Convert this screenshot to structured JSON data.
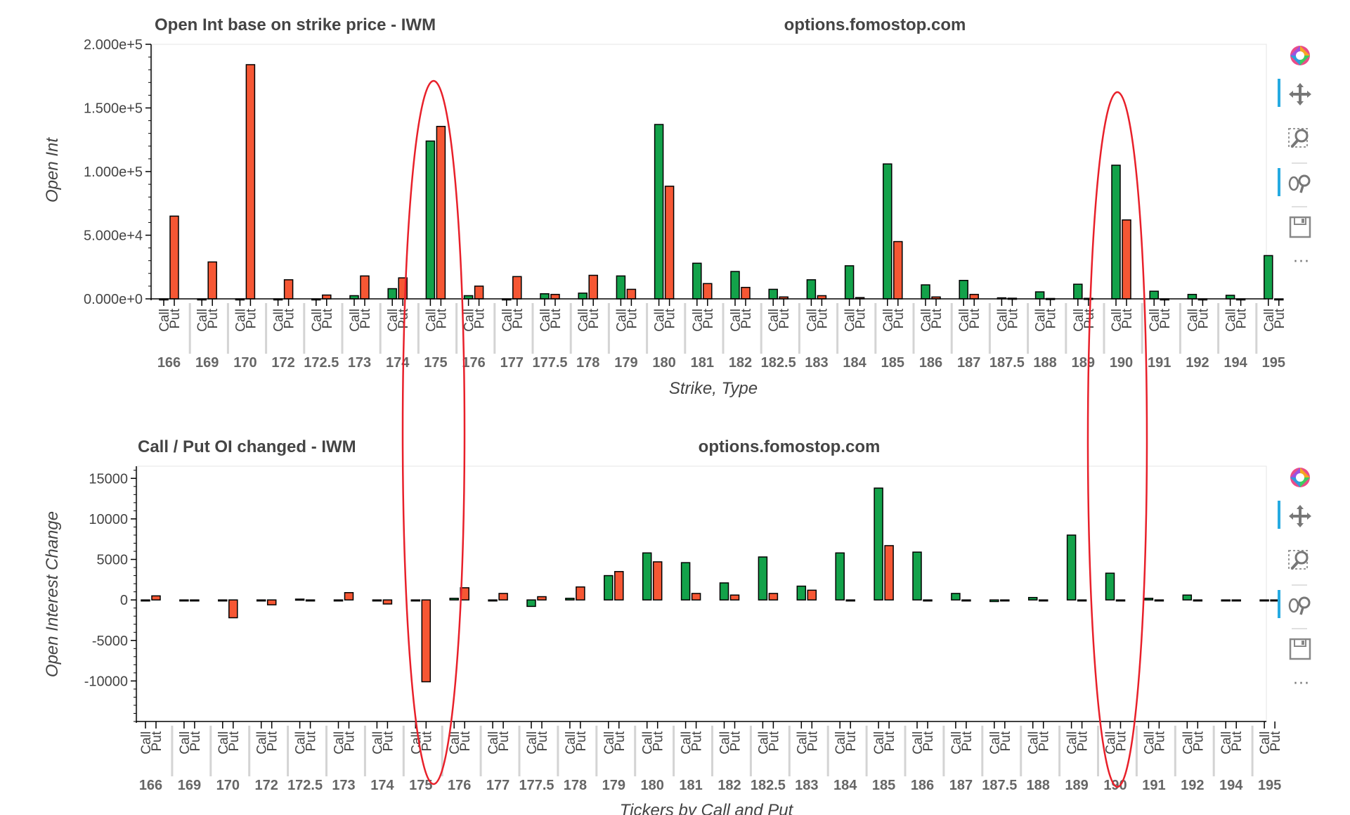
{
  "chart_data": [
    {
      "type": "bar",
      "title": "Open Int base on strike price - IWM",
      "watermark": "options.fomostop.com",
      "xlabel": "Strike, Type",
      "ylabel": "Open Int",
      "ylim": [
        0,
        200000
      ],
      "yticks": [
        0,
        50000,
        100000,
        150000,
        200000
      ],
      "ytick_labels": [
        "0.000e+0",
        "5.000e+4",
        "1.000e+5",
        "1.500e+5",
        "2.000e+5"
      ],
      "types": [
        "Call",
        "Put"
      ],
      "categories": [
        "166",
        "169",
        "170",
        "172",
        "172.5",
        "173",
        "174",
        "175",
        "176",
        "177",
        "177.5",
        "178",
        "179",
        "180",
        "181",
        "182",
        "182.5",
        "183",
        "184",
        "185",
        "186",
        "187",
        "187.5",
        "188",
        "189",
        "190",
        "191",
        "192",
        "194",
        "195"
      ],
      "series": [
        {
          "name": "Call",
          "color": "#13a24a",
          "values": [
            0,
            0,
            0,
            0,
            0,
            2500,
            8000,
            124000,
            2500,
            0,
            4000,
            4500,
            18000,
            137000,
            28000,
            21500,
            7500,
            15000,
            26000,
            106000,
            11000,
            14500,
            800,
            5500,
            11500,
            105000,
            6000,
            3500,
            2800,
            34000
          ]
        },
        {
          "name": "Put",
          "color": "#f65734",
          "values": [
            65000,
            29000,
            184000,
            15000,
            3000,
            18000,
            16500,
            135500,
            10000,
            17500,
            3500,
            18500,
            7500,
            88500,
            12000,
            9000,
            1500,
            2500,
            1000,
            45000,
            1500,
            3500,
            500,
            300,
            400,
            62000,
            0,
            0,
            0,
            0
          ]
        }
      ]
    },
    {
      "type": "bar",
      "title": "Call / Put OI changed - IWM",
      "watermark": "options.fomostop.com",
      "xlabel": "Tickers by Call and Put",
      "ylabel": "Open Interest Change",
      "ylim": [
        -15000,
        16500
      ],
      "yticks": [
        -10000,
        -5000,
        0,
        5000,
        10000,
        15000
      ],
      "ytick_labels": [
        "-10000",
        "-5000",
        "0",
        "5000",
        "10000",
        "15000"
      ],
      "types": [
        "Call",
        "Put"
      ],
      "categories": [
        "166",
        "169",
        "170",
        "172",
        "172.5",
        "173",
        "174",
        "175",
        "176",
        "177",
        "177.5",
        "178",
        "179",
        "180",
        "181",
        "182",
        "182.5",
        "183",
        "184",
        "185",
        "186",
        "187",
        "187.5",
        "188",
        "189",
        "190",
        "191",
        "192",
        "194",
        "195"
      ],
      "series": [
        {
          "name": "Call",
          "color": "#13a24a",
          "values": [
            0,
            0,
            0,
            0,
            100,
            0,
            0,
            0,
            200,
            0,
            -800,
            200,
            3000,
            5800,
            4600,
            2100,
            5300,
            1700,
            5800,
            13800,
            5900,
            800,
            -200,
            300,
            8000,
            3300,
            200,
            600,
            0,
            0
          ]
        },
        {
          "name": "Put",
          "color": "#f65734",
          "values": [
            500,
            0,
            -2200,
            -600,
            0,
            900,
            -500,
            -10100,
            1500,
            800,
            400,
            1600,
            3500,
            4700,
            800,
            600,
            800,
            1200,
            0,
            6700,
            0,
            0,
            0,
            0,
            0,
            0,
            0,
            0,
            0,
            0
          ]
        }
      ]
    }
  ],
  "toolbar": {
    "icons": [
      "bokeh-logo-icon",
      "pan-icon",
      "box-zoom-icon",
      "wheel-zoom-icon",
      "save-icon",
      "more-icon"
    ],
    "more": "···"
  }
}
